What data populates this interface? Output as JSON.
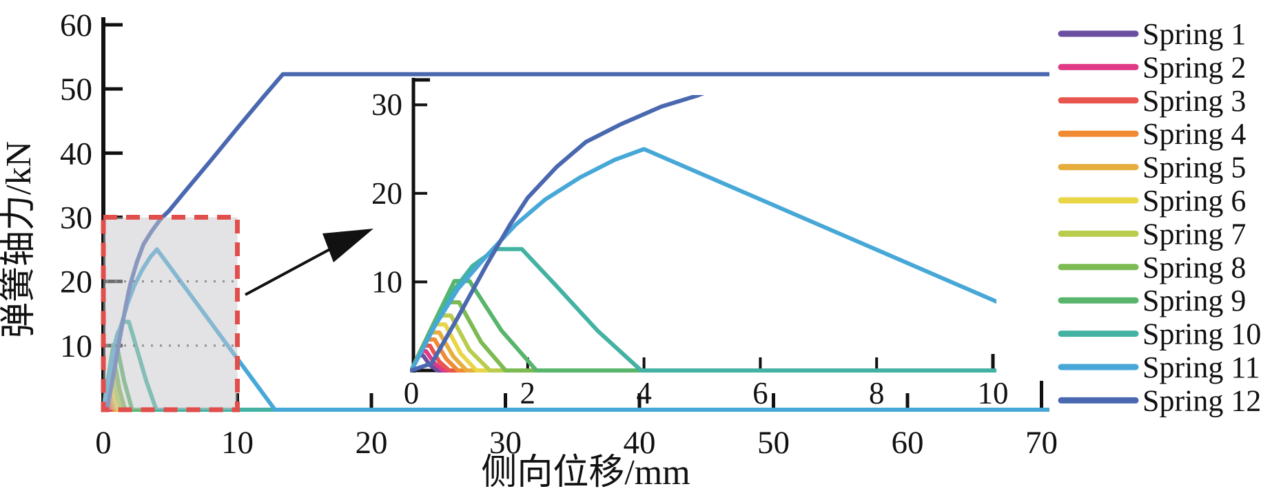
{
  "chart_data": {
    "type": "line",
    "title": "",
    "xlabel": "侧向位移/mm",
    "ylabel": "弹簧轴力/kN",
    "grid": "off",
    "legend_position": "right-outside",
    "main_axes": {
      "xlim": [
        0,
        70.5
      ],
      "ylim": [
        0,
        61
      ],
      "x_ticks": [
        0,
        10,
        20,
        30,
        40,
        50,
        60,
        70
      ],
      "y_ticks": [
        10,
        20,
        30,
        40,
        50,
        60
      ]
    },
    "inset_axes": {
      "xlim": [
        0,
        10
      ],
      "ylim": [
        0,
        31
      ],
      "x_ticks": [
        0,
        2,
        4,
        6,
        8,
        10
      ],
      "y_ticks": [
        10,
        20,
        30
      ]
    },
    "zoom_region": {
      "x_range_mm": [
        0,
        10
      ],
      "y_range_kn": [
        0,
        30
      ],
      "border_color": "#e04f4b",
      "fill_color": "rgba(200,200,203,0.5)",
      "gridlines_kn": [
        10,
        20
      ],
      "gridline_color": "#8f8f8f",
      "arrow_color": "#111111"
    },
    "series": [
      {
        "name": "Spring 1",
        "color": "#6b4fa1",
        "points": [
          [
            0,
            0
          ],
          [
            0.07,
            1.0
          ],
          [
            0.13,
            1.7
          ],
          [
            0.2,
            1.7
          ],
          [
            0.32,
            0.6
          ],
          [
            0.45,
            0
          ],
          [
            71,
            0
          ]
        ]
      },
      {
        "name": "Spring 2",
        "color": "#e03a86",
        "points": [
          [
            0,
            0
          ],
          [
            0.09,
            1.3
          ],
          [
            0.17,
            2.2
          ],
          [
            0.25,
            2.2
          ],
          [
            0.4,
            0.8
          ],
          [
            0.55,
            0
          ],
          [
            71,
            0
          ]
        ]
      },
      {
        "name": "Spring 3",
        "color": "#e8544e",
        "points": [
          [
            0,
            0
          ],
          [
            0.12,
            1.7
          ],
          [
            0.22,
            2.8
          ],
          [
            0.32,
            2.8
          ],
          [
            0.48,
            1.0
          ],
          [
            0.65,
            0
          ],
          [
            71,
            0
          ]
        ]
      },
      {
        "name": "Spring 4",
        "color": "#f08a33",
        "points": [
          [
            0,
            0
          ],
          [
            0.15,
            2.1
          ],
          [
            0.28,
            3.5
          ],
          [
            0.4,
            3.5
          ],
          [
            0.6,
            1.3
          ],
          [
            0.8,
            0
          ],
          [
            71,
            0
          ]
        ]
      },
      {
        "name": "Spring 5",
        "color": "#e7ae3d",
        "points": [
          [
            0,
            0
          ],
          [
            0.18,
            2.6
          ],
          [
            0.34,
            4.3
          ],
          [
            0.48,
            4.3
          ],
          [
            0.72,
            1.6
          ],
          [
            0.95,
            0
          ],
          [
            71,
            0
          ]
        ]
      },
      {
        "name": "Spring 6",
        "color": "#e8d647",
        "points": [
          [
            0,
            0
          ],
          [
            0.22,
            3.1
          ],
          [
            0.42,
            5.2
          ],
          [
            0.58,
            5.2
          ],
          [
            0.85,
            1.9
          ],
          [
            1.12,
            0
          ],
          [
            71,
            0
          ]
        ]
      },
      {
        "name": "Spring 7",
        "color": "#b9cc4e",
        "points": [
          [
            0,
            0
          ],
          [
            0.27,
            3.7
          ],
          [
            0.5,
            6.2
          ],
          [
            0.68,
            6.2
          ],
          [
            1.0,
            2.3
          ],
          [
            1.35,
            0
          ],
          [
            71,
            0
          ]
        ]
      },
      {
        "name": "Spring 8",
        "color": "#7cba52",
        "points": [
          [
            0,
            0
          ],
          [
            0.33,
            4.6
          ],
          [
            0.6,
            7.7
          ],
          [
            0.82,
            7.7
          ],
          [
            1.2,
            3.2
          ],
          [
            1.62,
            0
          ],
          [
            71,
            0
          ]
        ]
      },
      {
        "name": "Spring 9",
        "color": "#58b56b",
        "points": [
          [
            0,
            0
          ],
          [
            0.42,
            5.8
          ],
          [
            0.74,
            10.1
          ],
          [
            1.0,
            10.1
          ],
          [
            1.55,
            4.5
          ],
          [
            2.15,
            0
          ],
          [
            71,
            0
          ]
        ]
      },
      {
        "name": "Spring 10",
        "color": "#43b2a2",
        "points": [
          [
            0,
            0
          ],
          [
            0.35,
            4.5
          ],
          [
            0.7,
            8.8
          ],
          [
            1.05,
            11.8
          ],
          [
            1.45,
            13.7
          ],
          [
            1.9,
            13.7
          ],
          [
            2.5,
            9.5
          ],
          [
            3.2,
            4.5
          ],
          [
            3.95,
            0
          ],
          [
            71,
            0
          ]
        ]
      },
      {
        "name": "Spring 11",
        "color": "#47a8d8",
        "points": [
          [
            0,
            0
          ],
          [
            0.4,
            5.0
          ],
          [
            0.8,
            9.2
          ],
          [
            1.3,
            13.0
          ],
          [
            1.8,
            16.5
          ],
          [
            2.3,
            19.3
          ],
          [
            2.9,
            21.8
          ],
          [
            3.5,
            23.8
          ],
          [
            4.0,
            25.0
          ],
          [
            12.8,
            0
          ],
          [
            71,
            0
          ]
        ]
      },
      {
        "name": "Spring 12",
        "color": "#4a68b0",
        "points": [
          [
            0,
            0
          ],
          [
            0.35,
            0.8
          ],
          [
            0.8,
            6.0
          ],
          [
            1.3,
            12.0
          ],
          [
            1.7,
            16.5
          ],
          [
            2.0,
            19.5
          ],
          [
            2.5,
            23.0
          ],
          [
            3.0,
            25.8
          ],
          [
            3.6,
            27.8
          ],
          [
            4.3,
            29.8
          ],
          [
            4.9,
            31.0
          ],
          [
            6,
            33.8
          ],
          [
            8,
            38.8
          ],
          [
            10,
            43.9
          ],
          [
            12,
            48.9
          ],
          [
            13.4,
            52.3
          ],
          [
            71,
            52.3
          ]
        ]
      }
    ]
  }
}
